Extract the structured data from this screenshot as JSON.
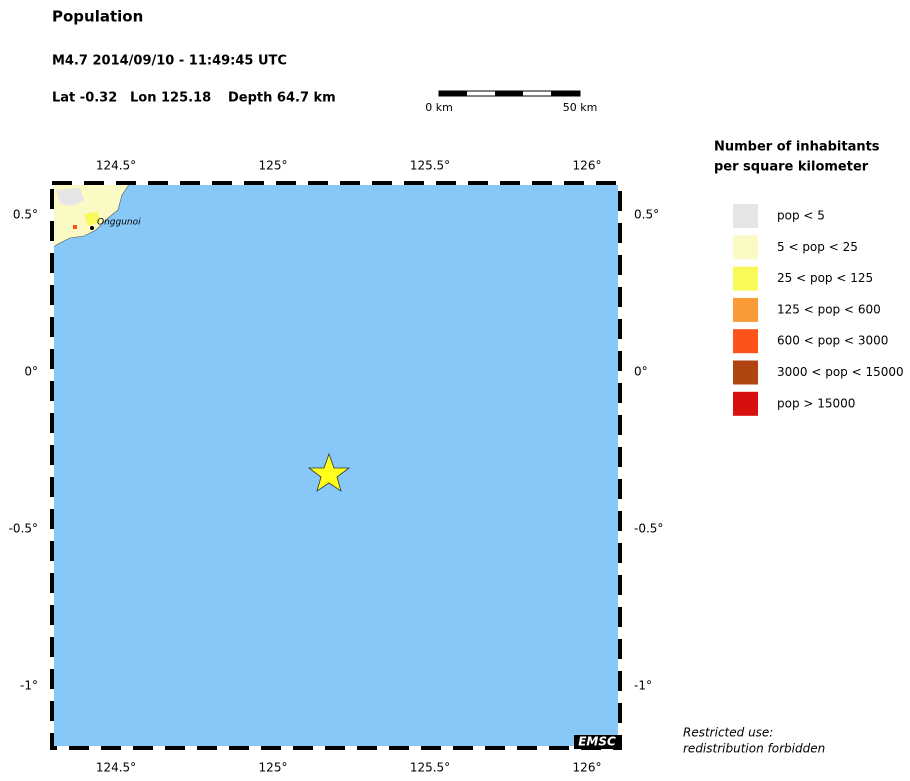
{
  "header": {
    "title": "Population",
    "event": "M4.7  2014/09/10 - 11:49:45 UTC",
    "lat": "Lat -0.32",
    "lon": "Lon 125.18",
    "depth": "Depth  64.7 km"
  },
  "scale_bar": {
    "left": "0 km",
    "right": "50 km"
  },
  "map": {
    "lon_ticks": [
      "124.5°",
      "125°",
      "125.5°",
      "126°"
    ],
    "lat_ticks": [
      "0.5°",
      "0°",
      "-0.5°",
      "-1°"
    ],
    "place": "Onggunoi",
    "credit": "EMSC"
  },
  "legend": {
    "title": [
      "Number of inhabitants",
      "per square kilometer"
    ],
    "items": [
      {
        "label": "pop < 5",
        "color": "#e6e6e6"
      },
      {
        "label": "5 < pop < 25",
        "color": "#fbf9c4"
      },
      {
        "label": "25 < pop < 125",
        "color": "#f9f95a"
      },
      {
        "label": "125 < pop < 600",
        "color": "#f99c38"
      },
      {
        "label": "600 < pop < 3000",
        "color": "#fb531a"
      },
      {
        "label": "3000 < pop < 15000",
        "color": "#b04511"
      },
      {
        "label": "pop > 15000",
        "color": "#d80f0f"
      }
    ]
  },
  "footer": [
    "Restricted use:",
    "redistribution forbidden"
  ]
}
